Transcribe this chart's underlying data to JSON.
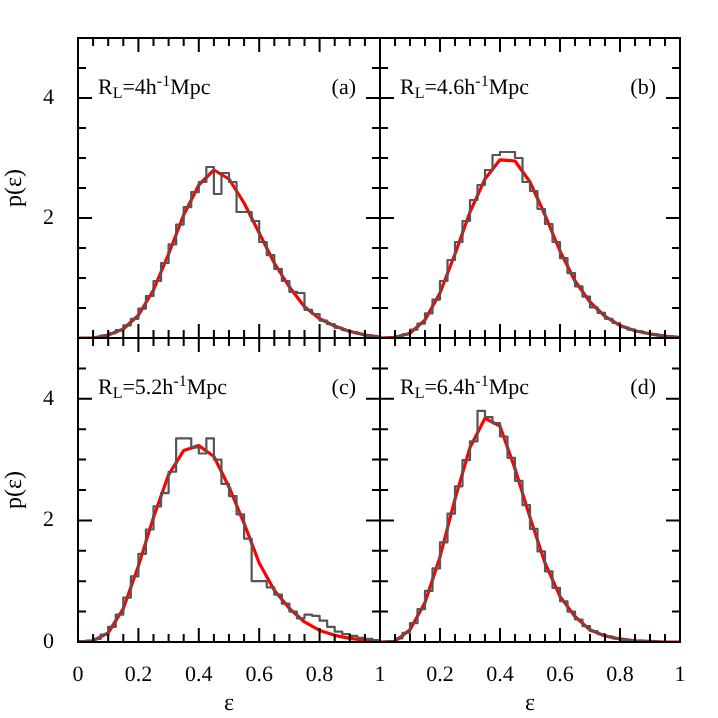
{
  "chart_data": [
    {
      "type": "histogram",
      "annotations": [
        "R$_{L}$=4h$^{-1}$Mpc",
        "(a)"
      ],
      "ylabel": "p(ε)",
      "xlim": [
        0,
        1
      ],
      "ylim": [
        0,
        5
      ],
      "marker": "none",
      "tick_labels": "y",
      "xticks": [
        0,
        {
          "value": 0.05,
          "label": null
        },
        {
          "value": 0.1,
          "label": null
        },
        {
          "value": 0.15,
          "label": null
        },
        0.2,
        {
          "value": 0.25,
          "label": null
        },
        {
          "value": 0.3,
          "label": null
        },
        {
          "value": 0.35,
          "label": null
        },
        0.4,
        {
          "value": 0.45,
          "label": null
        },
        {
          "value": 0.5,
          "label": null
        },
        {
          "value": 0.55,
          "label": null
        },
        0.6,
        {
          "value": 0.65,
          "label": null
        },
        {
          "value": 0.7,
          "label": null
        },
        {
          "value": 0.75,
          "label": null
        },
        0.8,
        {
          "value": 0.85,
          "label": null
        },
        {
          "value": 0.9,
          "label": null
        },
        {
          "value": 0.95,
          "label": null
        },
        1
      ],
      "yticks": [
        {
          "value": 0,
          "label": null
        },
        {
          "value": 0.5,
          "label": null
        },
        {
          "value": 1,
          "label": null
        },
        {
          "value": 1.5,
          "label": null
        },
        2,
        {
          "value": 2.5,
          "label": null
        },
        {
          "value": 3,
          "label": null
        },
        {
          "value": 3.5,
          "label": null
        },
        4,
        {
          "value": 4.5,
          "label": null
        }
      ],
      "series": [
        {
          "type": "histogram",
          "color": "#555555",
          "bins": [
            0,
            0.025,
            0.05,
            0.075,
            0.1,
            0.125,
            0.15,
            0.175,
            0.2,
            0.225,
            0.25,
            0.275,
            0.3,
            0.325,
            0.35,
            0.375,
            0.4,
            0.425,
            0.45,
            0.475,
            0.5,
            0.525,
            0.55,
            0.575,
            0.6,
            0.625,
            0.65,
            0.675,
            0.7,
            0.725,
            0.75,
            0.775,
            0.8,
            0.825,
            0.85,
            0.875,
            0.9,
            0.925,
            0.95,
            0.975,
            1
          ],
          "values": [
            0,
            0,
            0.01,
            0.04,
            0.08,
            0.13,
            0.21,
            0.32,
            0.49,
            0.7,
            0.95,
            1.25,
            1.56,
            1.89,
            2.18,
            2.43,
            2.6,
            2.85,
            2.4,
            2.75,
            2.6,
            2.1,
            2.1,
            1.95,
            1.6,
            1.38,
            1.15,
            0.95,
            0.77,
            0.75,
            0.47,
            0.4,
            0.29,
            0.23,
            0.17,
            0.13,
            0.1,
            0.07,
            0.04,
            0.03
          ]
        },
        {
          "type": "line",
          "color": "#ff0000",
          "x": [
            0,
            0.05,
            0.1,
            0.15,
            0.2,
            0.25,
            0.3,
            0.35,
            0.4,
            0.45,
            0.5,
            0.55,
            0.6,
            0.65,
            0.7,
            0.75,
            0.8,
            0.85,
            0.9,
            0.95,
            1
          ],
          "values": [
            0,
            0,
            0.05,
            0.15,
            0.38,
            0.8,
            1.4,
            2.05,
            2.55,
            2.8,
            2.65,
            2.25,
            1.75,
            1.25,
            0.85,
            0.52,
            0.32,
            0.2,
            0.11,
            0.05,
            0.02
          ]
        }
      ]
    },
    {
      "type": "histogram",
      "annotations": [
        "R$_{L}$=4.6h$^{-1}$Mpc",
        "(b)"
      ],
      "xlim": [
        0,
        1
      ],
      "ylim": [
        0,
        5
      ],
      "marker": "none",
      "tick_labels": false,
      "xticks": [
        0,
        {
          "value": 0.05,
          "label": null
        },
        {
          "value": 0.1,
          "label": null
        },
        {
          "value": 0.15,
          "label": null
        },
        0.2,
        {
          "value": 0.25,
          "label": null
        },
        {
          "value": 0.3,
          "label": null
        },
        {
          "value": 0.35,
          "label": null
        },
        0.4,
        {
          "value": 0.45,
          "label": null
        },
        {
          "value": 0.5,
          "label": null
        },
        {
          "value": 0.55,
          "label": null
        },
        0.6,
        {
          "value": 0.65,
          "label": null
        },
        {
          "value": 0.7,
          "label": null
        },
        {
          "value": 0.75,
          "label": null
        },
        0.8,
        {
          "value": 0.85,
          "label": null
        },
        {
          "value": 0.9,
          "label": null
        },
        {
          "value": 0.95,
          "label": null
        },
        1
      ],
      "yticks": [
        0,
        {
          "value": 0.5,
          "label": null
        },
        {
          "value": 1,
          "label": null
        },
        {
          "value": 1.5,
          "label": null
        },
        2,
        {
          "value": 2.5,
          "label": null
        },
        {
          "value": 3,
          "label": null
        },
        {
          "value": 3.5,
          "label": null
        },
        4,
        {
          "value": 4.5,
          "label": null
        }
      ],
      "series": [
        {
          "type": "histogram",
          "color": "#555555",
          "bins": [
            0,
            0.025,
            0.05,
            0.075,
            0.1,
            0.125,
            0.15,
            0.175,
            0.2,
            0.225,
            0.25,
            0.275,
            0.3,
            0.325,
            0.35,
            0.375,
            0.4,
            0.425,
            0.45,
            0.475,
            0.5,
            0.525,
            0.55,
            0.575,
            0.6,
            0.625,
            0.65,
            0.675,
            0.7,
            0.725,
            0.75,
            0.775,
            0.8,
            0.825,
            0.85,
            0.875,
            0.9,
            0.925,
            0.95,
            0.975,
            1
          ],
          "values": [
            0,
            0,
            0.03,
            0.06,
            0.14,
            0.24,
            0.41,
            0.64,
            0.95,
            1.3,
            1.6,
            1.95,
            2.3,
            2.55,
            2.8,
            3.05,
            3.1,
            3.1,
            3.0,
            2.6,
            2.45,
            2.15,
            1.9,
            1.6,
            1.33,
            1.08,
            0.86,
            0.69,
            0.51,
            0.42,
            0.32,
            0.25,
            0.18,
            0.14,
            0.11,
            0.08,
            0.06,
            0.04,
            0.03,
            0.01
          ]
        },
        {
          "type": "line",
          "color": "#ff0000",
          "x": [
            0,
            0.05,
            0.1,
            0.15,
            0.2,
            0.25,
            0.3,
            0.35,
            0.4,
            0.45,
            0.5,
            0.55,
            0.6,
            0.65,
            0.7,
            0.75,
            0.8,
            0.85,
            0.9,
            0.95,
            1
          ],
          "values": [
            0,
            0.01,
            0.08,
            0.3,
            0.75,
            1.4,
            2.1,
            2.65,
            2.97,
            2.95,
            2.6,
            2.05,
            1.45,
            0.95,
            0.6,
            0.36,
            0.21,
            0.12,
            0.07,
            0.03,
            0.01
          ]
        }
      ]
    },
    {
      "type": "histogram",
      "annotations": [
        "R$_{L}$=5.2h$^{-1}$Mpc",
        "(c)"
      ],
      "ylabel": "p(ε)",
      "xlabel": "ε",
      "xlim": [
        0,
        1
      ],
      "ylim": [
        0,
        5
      ],
      "marker": "none",
      "xticks": [
        0,
        {
          "value": 0.05,
          "label": null
        },
        {
          "value": 0.1,
          "label": null
        },
        {
          "value": 0.15,
          "label": null
        },
        0.2,
        {
          "value": 0.25,
          "label": null
        },
        {
          "value": 0.3,
          "label": null
        },
        {
          "value": 0.35,
          "label": null
        },
        0.4,
        {
          "value": 0.45,
          "label": null
        },
        {
          "value": 0.5,
          "label": null
        },
        {
          "value": 0.55,
          "label": null
        },
        0.6,
        {
          "value": 0.65,
          "label": null
        },
        {
          "value": 0.7,
          "label": null
        },
        {
          "value": 0.75,
          "label": null
        },
        0.8,
        {
          "value": 0.85,
          "label": null
        },
        {
          "value": 0.9,
          "label": null
        },
        {
          "value": 0.95,
          "label": null
        },
        1
      ],
      "yticks": [
        0,
        {
          "value": 0.5,
          "label": null
        },
        {
          "value": 1,
          "label": null
        },
        {
          "value": 1.5,
          "label": null
        },
        2,
        {
          "value": 2.5,
          "label": null
        },
        {
          "value": 3,
          "label": null
        },
        {
          "value": 3.5,
          "label": null
        },
        4,
        {
          "value": 4.5,
          "label": null
        }
      ],
      "series": [
        {
          "type": "histogram",
          "color": "#555555",
          "bins": [
            0,
            0.025,
            0.05,
            0.075,
            0.1,
            0.125,
            0.15,
            0.175,
            0.2,
            0.225,
            0.25,
            0.275,
            0.3,
            0.325,
            0.35,
            0.375,
            0.4,
            0.425,
            0.45,
            0.475,
            0.5,
            0.525,
            0.55,
            0.575,
            0.6,
            0.625,
            0.65,
            0.675,
            0.7,
            0.725,
            0.75,
            0.775,
            0.8,
            0.825,
            0.85,
            0.875,
            0.9,
            0.925,
            0.95,
            0.975,
            1
          ],
          "values": [
            0.01,
            0.02,
            0.05,
            0.12,
            0.25,
            0.45,
            0.73,
            1.08,
            1.45,
            1.85,
            2.23,
            2.45,
            2.8,
            3.35,
            3.35,
            3.2,
            3.1,
            3.35,
            3.0,
            2.6,
            2.4,
            2.1,
            1.7,
            1.0,
            1.0,
            0.9,
            0.78,
            0.63,
            0.5,
            0.39,
            0.45,
            0.43,
            0.35,
            0.25,
            0.17,
            0.13,
            0.1,
            0.07,
            0.05,
            0.03
          ]
        },
        {
          "type": "line",
          "color": "#ff0000",
          "x": [
            0,
            0.05,
            0.1,
            0.15,
            0.2,
            0.25,
            0.3,
            0.35,
            0.4,
            0.45,
            0.5,
            0.55,
            0.6,
            0.65,
            0.7,
            0.75,
            0.8,
            0.85,
            0.9,
            0.95,
            1
          ],
          "values": [
            0,
            0.02,
            0.15,
            0.55,
            1.25,
            2.05,
            2.75,
            3.15,
            3.23,
            3.05,
            2.55,
            1.95,
            1.3,
            0.85,
            0.55,
            0.33,
            0.19,
            0.11,
            0.06,
            0.03,
            0.01
          ]
        }
      ]
    },
    {
      "type": "histogram",
      "annotations": [
        "R$_{L}$=6.4h$^{-1}$Mpc",
        "(d)"
      ],
      "xlabel": "ε",
      "xlim": [
        0,
        1
      ],
      "ylim": [
        0,
        5
      ],
      "marker": "none",
      "tick_labels": "x",
      "xticks": [
        {
          "value": 0,
          "label": null
        },
        {
          "value": 0.05,
          "label": null
        },
        {
          "value": 0.1,
          "label": null
        },
        {
          "value": 0.15,
          "label": null
        },
        0.2,
        {
          "value": 0.25,
          "label": null
        },
        {
          "value": 0.3,
          "label": null
        },
        {
          "value": 0.35,
          "label": null
        },
        0.4,
        {
          "value": 0.45,
          "label": null
        },
        {
          "value": 0.5,
          "label": null
        },
        {
          "value": 0.55,
          "label": null
        },
        0.6,
        {
          "value": 0.65,
          "label": null
        },
        {
          "value": 0.7,
          "label": null
        },
        {
          "value": 0.75,
          "label": null
        },
        0.8,
        {
          "value": 0.85,
          "label": null
        },
        {
          "value": 0.9,
          "label": null
        },
        {
          "value": 0.95,
          "label": null
        },
        1
      ],
      "yticks": [
        0,
        {
          "value": 0.5,
          "label": null
        },
        {
          "value": 1,
          "label": null
        },
        {
          "value": 1.5,
          "label": null
        },
        2,
        {
          "value": 2.5,
          "label": null
        },
        {
          "value": 3,
          "label": null
        },
        {
          "value": 3.5,
          "label": null
        },
        4,
        {
          "value": 4.5,
          "label": null
        }
      ],
      "series": [
        {
          "type": "histogram",
          "color": "#555555",
          "bins": [
            0,
            0.025,
            0.05,
            0.075,
            0.1,
            0.125,
            0.15,
            0.175,
            0.2,
            0.225,
            0.25,
            0.275,
            0.3,
            0.325,
            0.35,
            0.375,
            0.4,
            0.425,
            0.45,
            0.475,
            0.5,
            0.525,
            0.55,
            0.575,
            0.6,
            0.625,
            0.65,
            0.675,
            0.7,
            0.725,
            0.75,
            0.775,
            0.8,
            0.825,
            0.85,
            0.875,
            0.9,
            0.925,
            0.95,
            0.975,
            1
          ],
          "values": [
            0,
            0.01,
            0.06,
            0.15,
            0.31,
            0.54,
            0.84,
            1.21,
            1.64,
            2.11,
            2.56,
            2.99,
            3.3,
            3.8,
            3.7,
            3.6,
            3.38,
            3.03,
            2.65,
            2.25,
            1.86,
            1.49,
            1.16,
            0.89,
            0.67,
            0.5,
            0.37,
            0.26,
            0.18,
            0.13,
            0.09,
            0.06,
            0.04,
            0.03,
            0.02,
            0.01,
            0.01,
            0,
            0,
            0
          ]
        },
        {
          "type": "line",
          "color": "#ff0000",
          "x": [
            0,
            0.05,
            0.1,
            0.15,
            0.2,
            0.25,
            0.3,
            0.35,
            0.4,
            0.45,
            0.5,
            0.55,
            0.6,
            0.65,
            0.7,
            0.75,
            0.8,
            0.85,
            0.9,
            0.95,
            1
          ],
          "values": [
            0,
            0.01,
            0.2,
            0.65,
            1.4,
            2.35,
            3.2,
            3.68,
            3.55,
            2.85,
            2.05,
            1.3,
            0.75,
            0.42,
            0.2,
            0.1,
            0.05,
            0.02,
            0.01,
            0,
            0
          ]
        }
      ]
    }
  ]
}
